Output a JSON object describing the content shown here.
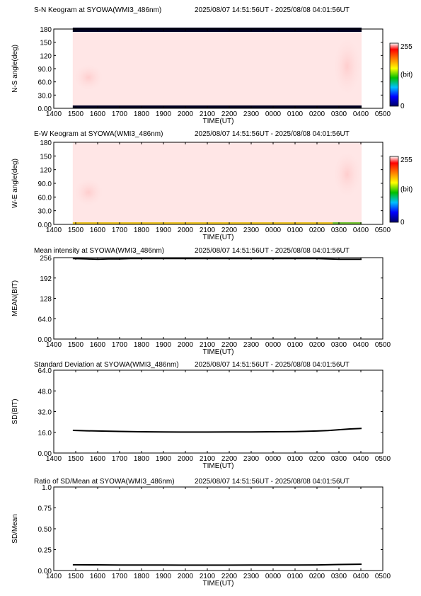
{
  "figure": {
    "x_ticks": [
      "1400",
      "1500",
      "1600",
      "1700",
      "1800",
      "1900",
      "2000",
      "2100",
      "2200",
      "2300",
      "0000",
      "0100",
      "0200",
      "0300",
      "0400",
      "0500"
    ],
    "x_label": "TIME(UT)",
    "time_range": "2025/08/07 14:51:56UT - 2025/08/08 04:01:56UT"
  },
  "chart_data": [
    {
      "type": "heatmap",
      "title": "S-N Keogram at SYOWA(WMI3_486nm)",
      "xlabel": "TIME(UT)",
      "ylabel": "N-S angle(deg)",
      "xlim": [
        "14:00",
        "05:00"
      ],
      "ylim": [
        0,
        180
      ],
      "y_ticks": [
        "0.00",
        "30.0",
        "60.0",
        "90.0",
        "120",
        "150",
        "180"
      ],
      "colorbar": {
        "min_label": "0",
        "max_label": "255",
        "unit_label": "(bit)",
        "colors": [
          "#000066",
          "#0000ff",
          "#00c0ff",
          "#00c000",
          "#ffff00",
          "#ff8000",
          "#ff0000",
          "#ffffff"
        ]
      },
      "data_start": "14:51:56",
      "data_end": "04:01:56",
      "description_values": {
        "background_level": 250,
        "top_band_level": 0,
        "bottom_band_level": 0
      },
      "brighter_regions": [
        {
          "start": "14:55",
          "end": "16:15",
          "angle_min": 40,
          "angle_max": 100
        },
        {
          "start": "02:45",
          "end": "04:00",
          "angle_min": 30,
          "angle_max": 160
        }
      ]
    },
    {
      "type": "heatmap",
      "title": "E-W Keogram at SYOWA(WMI3_486nm)",
      "xlabel": "TIME(UT)",
      "ylabel": "W-E angle(deg)",
      "xlim": [
        "14:00",
        "05:00"
      ],
      "ylim": [
        0,
        180
      ],
      "y_ticks": [
        "0.00",
        "30.0",
        "60.0",
        "90.0",
        "120",
        "150",
        "180"
      ],
      "colorbar": {
        "min_label": "0",
        "max_label": "255",
        "unit_label": "(bit)",
        "colors": [
          "#000066",
          "#0000ff",
          "#00c0ff",
          "#00c000",
          "#ffff00",
          "#ff8000",
          "#ff0000",
          "#ffffff"
        ]
      },
      "data_start": "14:51:56",
      "data_end": "04:01:56",
      "description_values": {
        "background_level": 250,
        "bottom_band_level": 150
      },
      "brighter_regions": [
        {
          "start": "14:55",
          "end": "16:15",
          "angle_min": 40,
          "angle_max": 100
        },
        {
          "start": "02:45",
          "end": "04:00",
          "angle_min": 60,
          "angle_max": 160
        }
      ]
    },
    {
      "type": "line",
      "title": "Mean intensity at SYOWA(WMI3_486nm)",
      "xlabel": "TIME(UT)",
      "ylabel": "MEAN(BIT)",
      "xlim": [
        "14:00",
        "05:00"
      ],
      "ylim": [
        0,
        256
      ],
      "y_ticks": [
        "0.00",
        "64.0",
        "128",
        "192",
        "256"
      ],
      "series": [
        {
          "x": [
            "14:52",
            "15:30",
            "16:00",
            "16:30",
            "17:00",
            "17:30",
            "18:00",
            "19:00",
            "20:00",
            "21:00",
            "22:00",
            "23:00",
            "00:00",
            "01:00",
            "02:00",
            "02:30",
            "03:00",
            "03:30",
            "04:02"
          ],
          "y": [
            253,
            252,
            251,
            252,
            252,
            253,
            253,
            253,
            253,
            253,
            253,
            253,
            253,
            253,
            253,
            252,
            251,
            251,
            251
          ]
        }
      ]
    },
    {
      "type": "line",
      "title": "Standard Deviation at SYOWA(WMI3_486nm)",
      "xlabel": "TIME(UT)",
      "ylabel": "SD(BIT)",
      "xlim": [
        "14:00",
        "05:00"
      ],
      "ylim": [
        0,
        64
      ],
      "y_ticks": [
        "0.00",
        "16.0",
        "32.0",
        "48.0",
        "64.0"
      ],
      "series": [
        {
          "x": [
            "14:52",
            "15:30",
            "16:00",
            "17:00",
            "18:00",
            "19:00",
            "20:00",
            "21:00",
            "22:00",
            "23:00",
            "00:00",
            "01:00",
            "02:00",
            "02:30",
            "03:00",
            "03:30",
            "04:02"
          ],
          "y": [
            17.5,
            17.2,
            17.0,
            16.7,
            16.4,
            16.3,
            16.2,
            16.2,
            16.3,
            16.3,
            16.4,
            16.6,
            17.0,
            17.4,
            18.0,
            18.6,
            19.0
          ]
        }
      ]
    },
    {
      "type": "line",
      "title": "Ratio of SD/Mean at SYOWA(WMI3_486nm)",
      "xlabel": "TIME(UT)",
      "ylabel": "SD/Mean",
      "xlim": [
        "14:00",
        "05:00"
      ],
      "ylim": [
        0,
        1
      ],
      "y_ticks": [
        "0.00",
        "0.25",
        "0.50",
        "0.75",
        "1.0"
      ],
      "series": [
        {
          "x": [
            "14:52",
            "16:00",
            "17:00",
            "18:00",
            "19:00",
            "20:00",
            "21:00",
            "22:00",
            "23:00",
            "00:00",
            "01:00",
            "02:00",
            "03:00",
            "04:02"
          ],
          "y": [
            0.069,
            0.068,
            0.066,
            0.065,
            0.065,
            0.064,
            0.064,
            0.064,
            0.065,
            0.065,
            0.066,
            0.067,
            0.072,
            0.075
          ]
        }
      ]
    }
  ]
}
